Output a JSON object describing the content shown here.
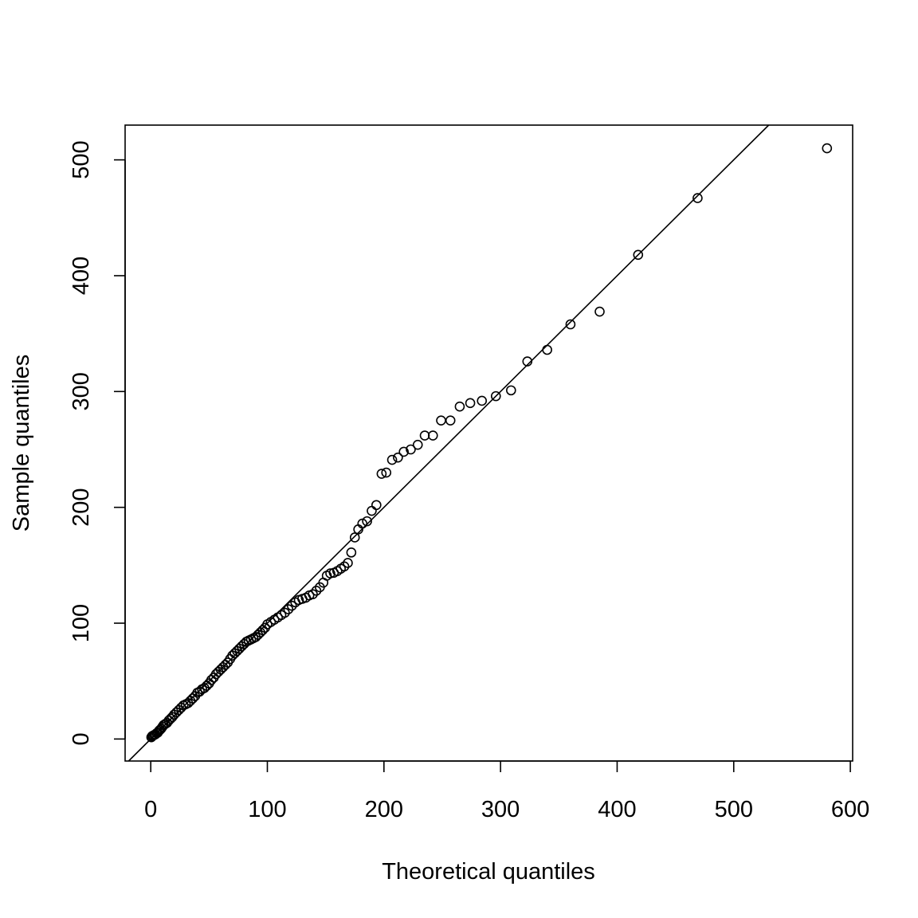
{
  "chart_data": {
    "type": "scatter",
    "title": "",
    "xlabel": "Theoretical quantiles",
    "ylabel": "Sample quantiles",
    "xlim": [
      -22,
      602
    ],
    "ylim": [
      -19,
      530
    ],
    "x_ticks": [
      0,
      100,
      200,
      300,
      400,
      500,
      600
    ],
    "y_ticks": [
      0,
      100,
      200,
      300,
      400,
      500
    ],
    "grid": false,
    "legend": "none",
    "marker": "open-circle",
    "reference_line": {
      "intercept": 0,
      "slope": 1
    },
    "points": [
      [
        0.5,
        1.5
      ],
      [
        1.2,
        2.5
      ],
      [
        2.0,
        3.0
      ],
      [
        3.0,
        3.5
      ],
      [
        4.0,
        4.0
      ],
      [
        5.0,
        5.0
      ],
      [
        6.0,
        5.5
      ],
      [
        7.0,
        7.0
      ],
      [
        8.0,
        8.0
      ],
      [
        9.0,
        9.0
      ],
      [
        10.0,
        10.5
      ],
      [
        11.0,
        12.0
      ],
      [
        12.5,
        13.0
      ],
      [
        14.0,
        14.0
      ],
      [
        15.5,
        16.0
      ],
      [
        17.0,
        17.5
      ],
      [
        18.5,
        19.0
      ],
      [
        20.0,
        21.0
      ],
      [
        22.0,
        23.0
      ],
      [
        24.0,
        25.0
      ],
      [
        26.0,
        27.0
      ],
      [
        28.0,
        29.0
      ],
      [
        30.0,
        30.0
      ],
      [
        32.0,
        31.0
      ],
      [
        34.0,
        33.0
      ],
      [
        36.0,
        35.0
      ],
      [
        38.0,
        37.0
      ],
      [
        40.0,
        40.0
      ],
      [
        42.0,
        41.0
      ],
      [
        44.0,
        43.0
      ],
      [
        46.0,
        44.0
      ],
      [
        48.0,
        46.0
      ],
      [
        50.0,
        48.0
      ],
      [
        52.0,
        51.0
      ],
      [
        54.0,
        53.0
      ],
      [
        56.0,
        56.0
      ],
      [
        58.0,
        58.0
      ],
      [
        60.0,
        60.0
      ],
      [
        62.0,
        62.0
      ],
      [
        64.0,
        64.0
      ],
      [
        66.0,
        66.0
      ],
      [
        68.0,
        69.0
      ],
      [
        70.0,
        72.0
      ],
      [
        72.0,
        74.0
      ],
      [
        74.0,
        76.0
      ],
      [
        76.0,
        78.0
      ],
      [
        78.0,
        80.0
      ],
      [
        80.0,
        82.0
      ],
      [
        82.0,
        84.0
      ],
      [
        84.0,
        85.0
      ],
      [
        86.0,
        86.0
      ],
      [
        88.0,
        87.0
      ],
      [
        90.0,
        88.0
      ],
      [
        92.0,
        90.0
      ],
      [
        94.0,
        92.0
      ],
      [
        96.0,
        94.0
      ],
      [
        98.0,
        96.0
      ],
      [
        100.0,
        99.0
      ],
      [
        103.0,
        101.0
      ],
      [
        106.0,
        103.0
      ],
      [
        109.0,
        105.0
      ],
      [
        112.0,
        107.0
      ],
      [
        115.0,
        109.0
      ],
      [
        118.0,
        112.0
      ],
      [
        121.0,
        115.0
      ],
      [
        124.0,
        118.0
      ],
      [
        127.0,
        120.0
      ],
      [
        130.0,
        121.0
      ],
      [
        133.0,
        122.0
      ],
      [
        136.0,
        124.0
      ],
      [
        139.0,
        125.0
      ],
      [
        142.0,
        128.0
      ],
      [
        145.0,
        131.0
      ],
      [
        148.0,
        135.0
      ],
      [
        151.0,
        141.0
      ],
      [
        154.0,
        143.0
      ],
      [
        157.0,
        143.5
      ],
      [
        160.0,
        145.0
      ],
      [
        163.0,
        147.0
      ],
      [
        166.0,
        149.0
      ],
      [
        169.0,
        152.0
      ],
      [
        172.0,
        161.0
      ],
      [
        175.0,
        174.0
      ],
      [
        178.0,
        181.0
      ],
      [
        181.5,
        186.0
      ],
      [
        185.5,
        188.0
      ],
      [
        189.5,
        197.0
      ],
      [
        193.5,
        202.0
      ],
      [
        198.0,
        229.0
      ],
      [
        202.0,
        230.0
      ],
      [
        207.0,
        241.0
      ],
      [
        212.0,
        243.0
      ],
      [
        217.0,
        248.0
      ],
      [
        223.0,
        250.0
      ],
      [
        229.0,
        254.0
      ],
      [
        235.0,
        262.0
      ],
      [
        242.0,
        262.0
      ],
      [
        249.0,
        275.0
      ],
      [
        257.0,
        275.0
      ],
      [
        265.0,
        287.0
      ],
      [
        274.0,
        290.0
      ],
      [
        284.0,
        292.0
      ],
      [
        296.0,
        296.0
      ],
      [
        309.0,
        301.0
      ],
      [
        323.0,
        326.0
      ],
      [
        340.0,
        336.0
      ],
      [
        360.0,
        358.0
      ],
      [
        385.0,
        369.0
      ],
      [
        418.0,
        418.0
      ],
      [
        469.0,
        467.0
      ],
      [
        580.0,
        510.0
      ]
    ]
  }
}
